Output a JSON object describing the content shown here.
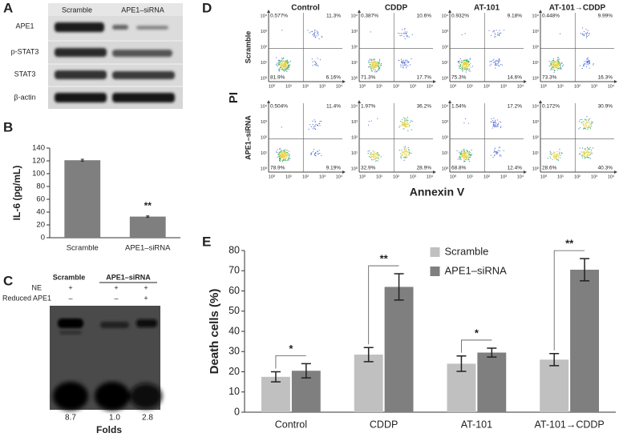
{
  "panel_labels": [
    "A",
    "B",
    "C",
    "D",
    "E"
  ],
  "blot": {
    "columns": [
      "Scramble",
      "APE1–siRNA"
    ],
    "rows": [
      "APE1",
      "p-STAT3",
      "STAT3",
      "β-actin"
    ]
  },
  "emsa": {
    "columns": [
      "Scramble",
      "APE1–siRNA"
    ],
    "rows": [
      {
        "label": "NE",
        "marks": [
          "+",
          "+",
          "+"
        ]
      },
      {
        "label": "Reduced APE1",
        "marks": [
          "–",
          "–",
          "+"
        ]
      }
    ],
    "folds": [
      "8.7",
      "1.0",
      "2.8"
    ],
    "folds_label": "Folds"
  },
  "flow": {
    "columns": [
      "Control",
      "CDDP",
      "AT-101",
      "AT-101→CDDP"
    ],
    "rows": [
      "Scramble",
      "APE1–siRNA"
    ],
    "axis_ticks": [
      "10⁰",
      "10¹",
      "10²",
      "10³",
      "10⁴"
    ],
    "y_label": "PI",
    "x_label": "Annexin V",
    "quadrants": [
      [
        [
          "0.577%",
          "11.3%",
          "81.9%",
          "6.16%"
        ],
        [
          "0.387%",
          "10.6%",
          "71.3%",
          "17.7%"
        ],
        [
          "0.932%",
          "9.18%",
          "75.3%",
          "14.6%"
        ],
        [
          "0.448%",
          "9.99%",
          "73.3%",
          "16.3%"
        ]
      ],
      [
        [
          "0.504%",
          "11.4%",
          "78.9%",
          "9.19%"
        ],
        [
          "1.97%",
          "36.2%",
          "32.9%",
          "28.9%"
        ],
        [
          "1.54%",
          "17.2%",
          "68.8%",
          "12.4%"
        ],
        [
          "0.172%",
          "30.9%",
          "28.6%",
          "40.3%"
        ]
      ]
    ]
  },
  "chart_data": [
    {
      "type": "bar",
      "ylabel": "IL-6 (pg/mL)",
      "categories": [
        "Scramble",
        "APE1–siRNA"
      ],
      "values": [
        121,
        33
      ],
      "errors": [
        1.5,
        1
      ],
      "color": "#7f7f7f",
      "annotations": [
        null,
        "**"
      ],
      "ylim": [
        0,
        140
      ],
      "yticks": [
        0,
        20,
        40,
        60,
        80,
        100,
        120,
        140
      ]
    },
    {
      "type": "grouped_bar",
      "ylabel": "Death cells (%)",
      "categories": [
        "Control",
        "CDDP",
        "AT-101",
        "AT-101→CDDP"
      ],
      "series": [
        {
          "name": "Scramble",
          "color": "#c0c0c0",
          "values": [
            17.5,
            28.5,
            24,
            26
          ],
          "errors": [
            2.5,
            3.5,
            3.8,
            3
          ]
        },
        {
          "name": "APE1–siRNA",
          "color": "#7f7f7f",
          "values": [
            20.5,
            62,
            29.5,
            70.5
          ],
          "errors": [
            3.5,
            6.5,
            2.2,
            5.5
          ]
        }
      ],
      "annotations": [
        "*",
        "**",
        "*",
        "**"
      ],
      "legend": "upper-center",
      "ylim": [
        0,
        80
      ],
      "yticks": [
        0,
        10,
        20,
        30,
        40,
        50,
        60,
        70,
        80
      ]
    }
  ]
}
